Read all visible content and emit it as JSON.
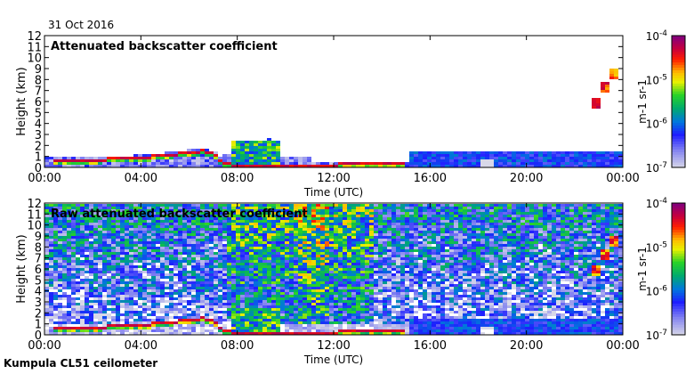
{
  "date_label": "31 Oct 2016",
  "footer_label": "Kumpula CL51 ceilometer",
  "colors": {
    "low": "#d8d8e8",
    "blue": "#2020ff",
    "green": "#00c040",
    "yellow": "#ffff00",
    "red": "#ff0000",
    "purple": "#800080"
  },
  "chart_data": [
    {
      "type": "heatmap",
      "title": "Attenuated backscatter coefficient",
      "xlabel": "Time (UTC)",
      "ylabel": "Height (km)",
      "xticks": [
        "00:00",
        "04:00",
        "08:00",
        "12:00",
        "16:00",
        "20:00",
        "00:00"
      ],
      "yticks": [
        "0",
        "1",
        "2",
        "3",
        "4",
        "5",
        "6",
        "7",
        "8",
        "9",
        "10",
        "11",
        "12"
      ],
      "xlim_hours": [
        0,
        24
      ],
      "ylim_km": [
        0,
        12
      ],
      "colorbar": {
        "label": "m-1 sr-1",
        "scale": "log",
        "range": [
          1e-07,
          0.0001
        ],
        "ticks": [
          "10-7",
          "10-6",
          "10-5",
          "10-4"
        ]
      },
      "cloud_base_km": {
        "t_hours": [
          0.3,
          2,
          4,
          6.5,
          7,
          7.3,
          7.6,
          8,
          12,
          12.5,
          14.8
        ],
        "height": [
          0.8,
          0.8,
          1.0,
          1.6,
          1.3,
          0.6,
          0.4,
          0.3,
          0.3,
          0.5,
          0.5
        ]
      },
      "features": [
        {
          "t_hours": 22.8,
          "height_km": 6.0
        },
        {
          "t_hours": 23.2,
          "height_km": 7.5
        },
        {
          "t_hours": 23.6,
          "height_km": 8.6
        }
      ]
    },
    {
      "type": "heatmap",
      "title": "Raw attenuated backscatter coefficient",
      "xlabel": "Time (UTC)",
      "ylabel": "Height (km)",
      "xticks": [
        "00:00",
        "04:00",
        "08:00",
        "12:00",
        "16:00",
        "20:00",
        "00:00"
      ],
      "yticks": [
        "0",
        "1",
        "2",
        "3",
        "4",
        "5",
        "6",
        "7",
        "8",
        "9",
        "10",
        "11",
        "12"
      ],
      "xlim_hours": [
        0,
        24
      ],
      "ylim_km": [
        0,
        12
      ],
      "colorbar": {
        "label": "m-1 sr-1",
        "scale": "log",
        "range": [
          1e-07,
          0.0001
        ],
        "ticks": [
          "10-7",
          "10-6",
          "10-5",
          "10-4"
        ]
      }
    }
  ]
}
